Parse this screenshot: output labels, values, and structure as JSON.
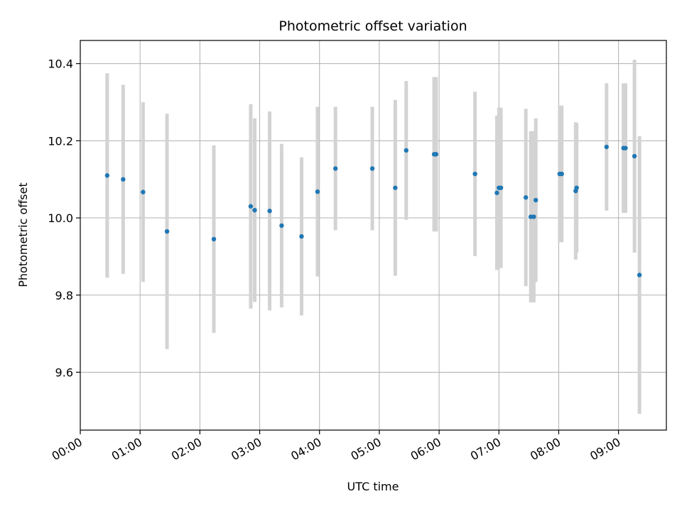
{
  "chart_data": {
    "type": "scatter",
    "title": "Photometric offset variation",
    "xlabel": "UTC time",
    "ylabel": "Photometric offset",
    "x_unit": "UTC time (HH:MM)",
    "xlim": [
      "00:00",
      "09:48"
    ],
    "ylim": [
      9.45,
      10.46
    ],
    "grid": true,
    "x_ticks": [
      "00:00",
      "01:00",
      "02:00",
      "03:00",
      "04:00",
      "05:00",
      "06:00",
      "07:00",
      "08:00",
      "09:00"
    ],
    "y_ticks": [
      "9.6",
      "9.8",
      "10.0",
      "10.2",
      "10.4"
    ],
    "series": [
      {
        "marker_color": "#1f77b4",
        "errorbar_color": "#d3d3d3",
        "points": [
          {
            "time": "00:27",
            "y": 10.11,
            "err": 0.265
          },
          {
            "time": "00:43",
            "y": 10.1,
            "err": 0.245
          },
          {
            "time": "01:03",
            "y": 10.067,
            "err": 0.233
          },
          {
            "time": "01:27",
            "y": 9.965,
            "err": 0.305
          },
          {
            "time": "02:14",
            "y": 9.945,
            "err": 0.243
          },
          {
            "time": "02:51",
            "y": 10.03,
            "err": 0.265
          },
          {
            "time": "02:55",
            "y": 10.02,
            "err": 0.238
          },
          {
            "time": "03:10",
            "y": 10.018,
            "err": 0.258
          },
          {
            "time": "03:22",
            "y": 9.98,
            "err": 0.212
          },
          {
            "time": "03:42",
            "y": 9.952,
            "err": 0.205
          },
          {
            "time": "03:58",
            "y": 10.068,
            "err": 0.22
          },
          {
            "time": "04:16",
            "y": 10.128,
            "err": 0.16
          },
          {
            "time": "04:53",
            "y": 10.128,
            "err": 0.16
          },
          {
            "time": "05:16",
            "y": 10.078,
            "err": 0.228
          },
          {
            "time": "05:27",
            "y": 10.175,
            "err": 0.18
          },
          {
            "time": "05:55",
            "y": 10.165,
            "err": 0.2
          },
          {
            "time": "05:57",
            "y": 10.165,
            "err": 0.2
          },
          {
            "time": "06:36",
            "y": 10.114,
            "err": 0.213
          },
          {
            "time": "06:58",
            "y": 10.065,
            "err": 0.2
          },
          {
            "time": "07:00",
            "y": 10.078,
            "err": 0.208
          },
          {
            "time": "07:02",
            "y": 10.078,
            "err": 0.208
          },
          {
            "time": "07:27",
            "y": 10.053,
            "err": 0.23
          },
          {
            "time": "07:32",
            "y": 10.003,
            "err": 0.222
          },
          {
            "time": "07:35",
            "y": 10.003,
            "err": 0.222
          },
          {
            "time": "07:37",
            "y": 10.046,
            "err": 0.212
          },
          {
            "time": "08:01",
            "y": 10.114,
            "err": 0.177
          },
          {
            "time": "08:03",
            "y": 10.114,
            "err": 0.177
          },
          {
            "time": "08:17",
            "y": 10.07,
            "err": 0.178
          },
          {
            "time": "08:18",
            "y": 10.078,
            "err": 0.168
          },
          {
            "time": "08:48",
            "y": 10.184,
            "err": 0.165
          },
          {
            "time": "09:05",
            "y": 10.181,
            "err": 0.168
          },
          {
            "time": "09:07",
            "y": 10.181,
            "err": 0.168
          },
          {
            "time": "09:16",
            "y": 10.16,
            "err": 0.25
          },
          {
            "time": "09:21",
            "y": 9.852,
            "err": 0.36
          }
        ]
      }
    ]
  }
}
